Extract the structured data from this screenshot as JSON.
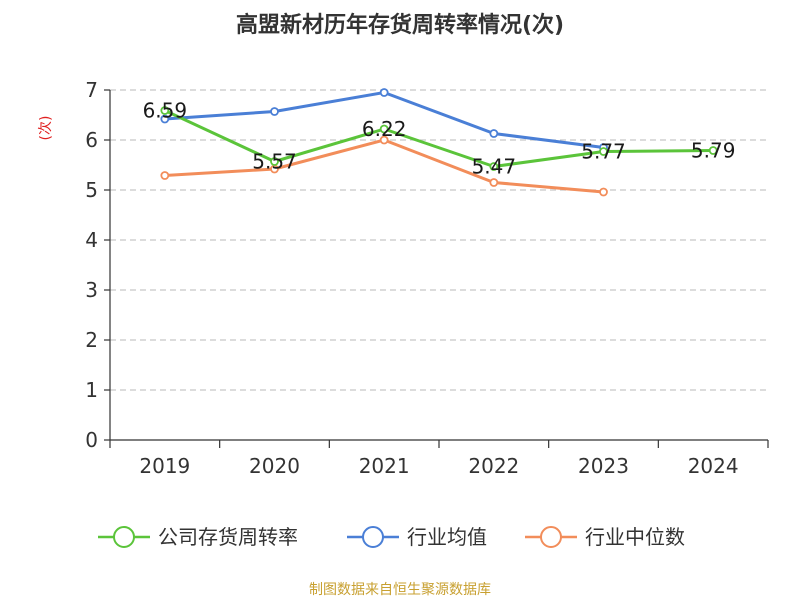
{
  "chart_data": {
    "type": "line",
    "title": "高盟新材历年存货周转率情况(次)",
    "ylabel": "(次)",
    "categories": [
      "2019",
      "2020",
      "2021",
      "2022",
      "2023",
      "2024"
    ],
    "ylim": [
      0,
      7
    ],
    "yticks": [
      "0",
      "1",
      "2",
      "3",
      "4",
      "5",
      "6",
      "7"
    ],
    "grid": true,
    "legend_position": "bottom",
    "series": [
      {
        "name": "公司存货周转率",
        "color": "#5bc43a",
        "values": [
          6.59,
          5.57,
          6.22,
          5.47,
          5.77,
          5.79
        ],
        "labels": [
          "6.59",
          "5.57",
          "6.22",
          "5.47",
          "5.77",
          "5.79"
        ]
      },
      {
        "name": "行业均值",
        "color": "#4a7fd6",
        "values": [
          6.42,
          6.57,
          6.95,
          6.13,
          5.85,
          null
        ],
        "labels": []
      },
      {
        "name": "行业中位数",
        "color": "#f28d5a",
        "values": [
          5.29,
          5.42,
          6.0,
          5.15,
          4.96,
          null
        ],
        "labels": []
      }
    ],
    "source": "制图数据来自恒生聚源数据库",
    "colors": {
      "axis": "#333333",
      "grid": "#c8c8c8",
      "ylabel": "#e02020",
      "source": "#c8a030"
    }
  }
}
